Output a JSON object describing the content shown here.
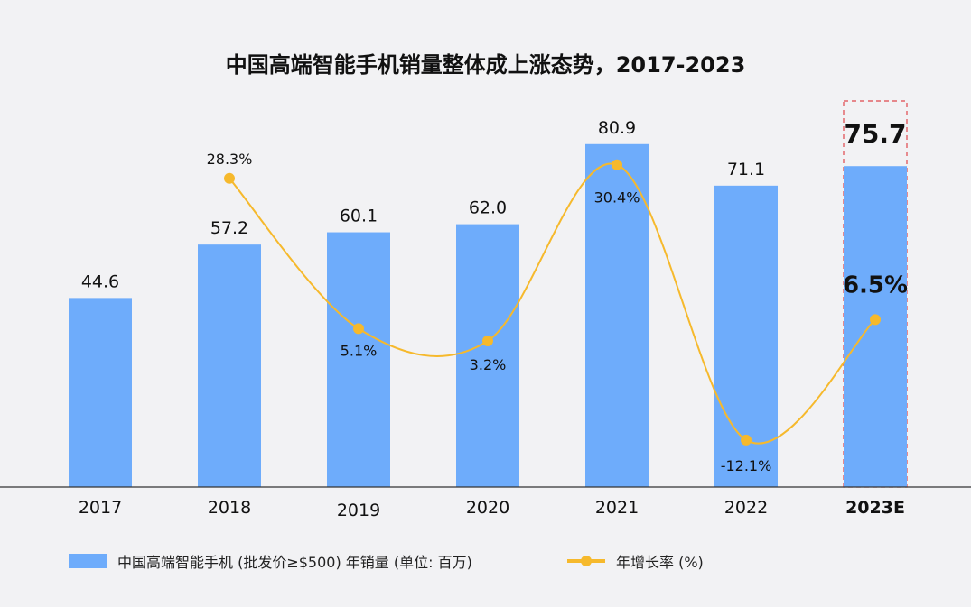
{
  "chart_data": {
    "type": "bar",
    "title": "中国高端智能手机销量整体成上涨态势，2017-2023",
    "categories": [
      "2017",
      "2018",
      "2019",
      "2020",
      "2021",
      "2022",
      "2023E"
    ],
    "series": [
      {
        "name": "中国高端智能手机 (批发价≥$500) 年销量 (单位: 百万)",
        "type": "bar",
        "values": [
          44.6,
          57.2,
          60.1,
          62.0,
          80.9,
          71.1,
          75.7
        ],
        "labels": [
          "44.6",
          "57.2",
          "60.1",
          "62.0",
          "80.9",
          "71.1",
          "75.7"
        ],
        "color": "#6eacfb"
      },
      {
        "name": "年增长率 (%)",
        "type": "line",
        "values": [
          null,
          28.3,
          5.1,
          3.2,
          30.4,
          -12.1,
          6.5
        ],
        "labels": [
          "",
          "28.3%",
          "5.1%",
          "3.2%",
          "30.4%",
          "-12.1%",
          "6.5%"
        ],
        "color": "#f6b92c"
      }
    ],
    "highlight": {
      "category": "2023E",
      "border_color": "#e0474c",
      "style": "dashed"
    },
    "legend": "bottom-left",
    "grid": false
  }
}
